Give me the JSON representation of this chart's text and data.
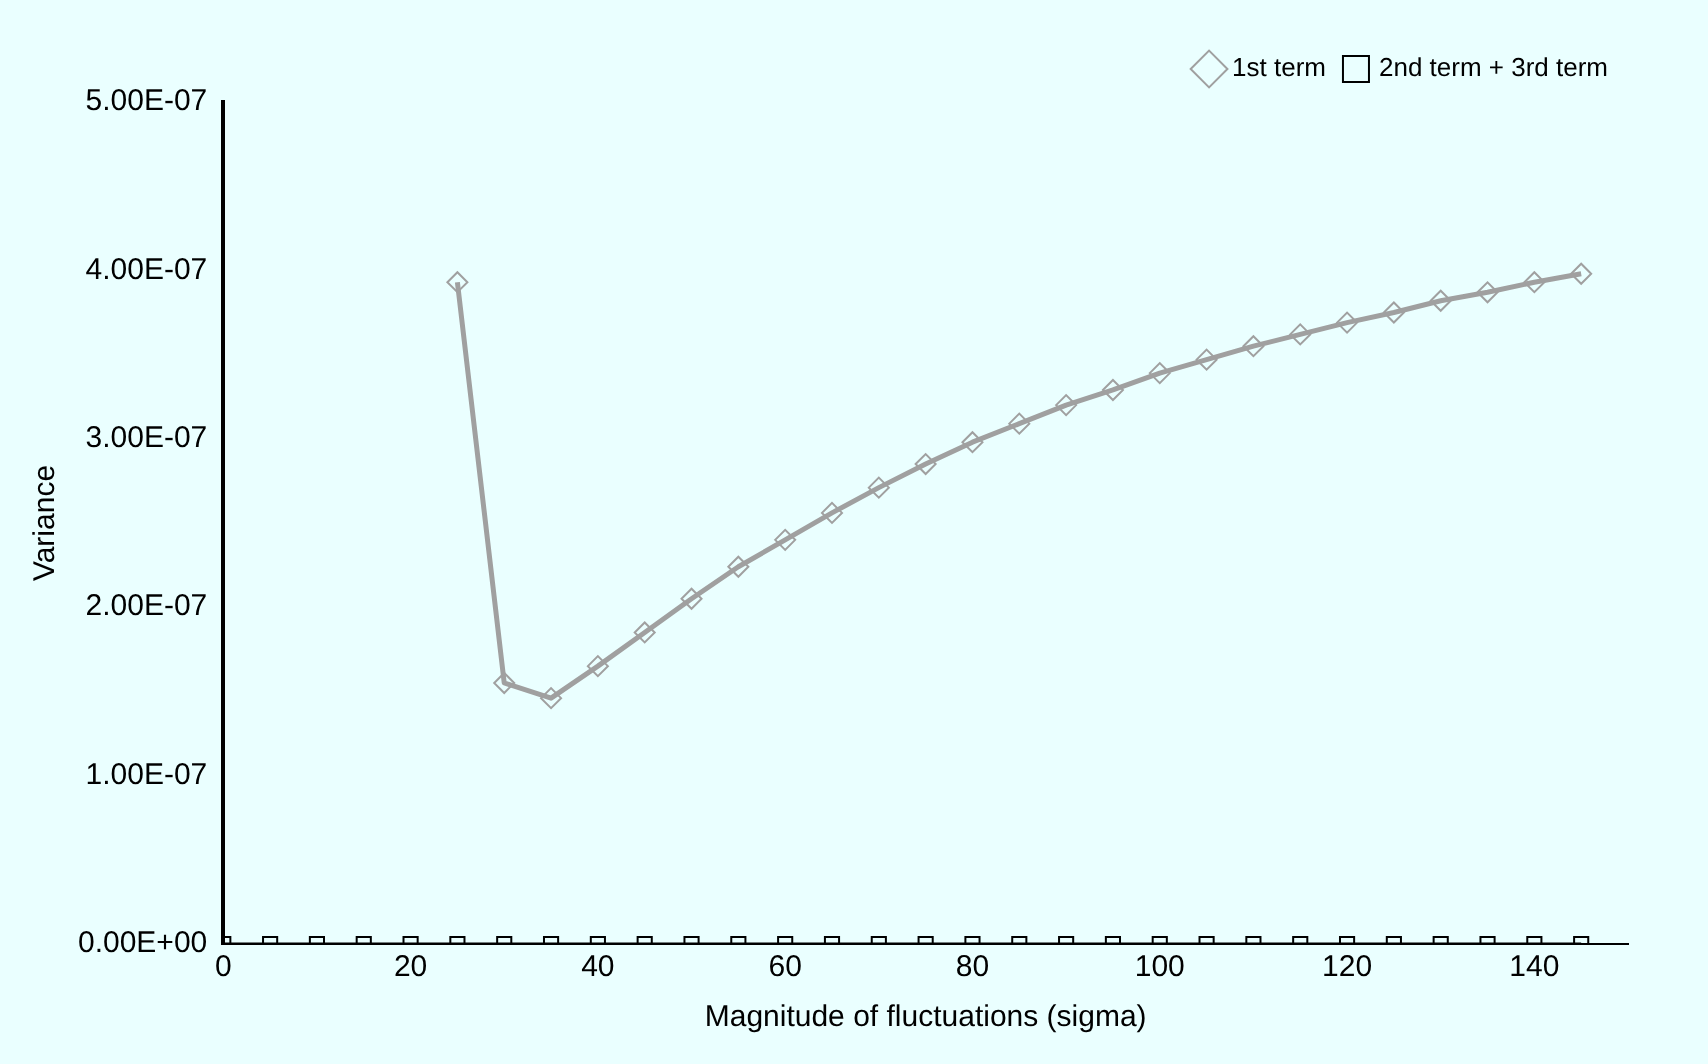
{
  "chart_data": {
    "type": "line",
    "xlabel": "Magnitude of fluctuations (sigma)",
    "ylabel": "Variance",
    "x": [
      0,
      5,
      10,
      15,
      20,
      25,
      30,
      35,
      40,
      45,
      50,
      55,
      60,
      65,
      70,
      75,
      80,
      85,
      90,
      95,
      100,
      105,
      110,
      115,
      120,
      125,
      130,
      135,
      140,
      145
    ],
    "series": [
      {
        "name": "1st term",
        "color": "#a0a0a0",
        "marker": "diamond",
        "values": [
          null,
          null,
          null,
          null,
          null,
          3.93e-07,
          1.55e-07,
          1.46e-07,
          1.65e-07,
          1.85e-07,
          2.05e-07,
          2.24e-07,
          2.4e-07,
          2.56e-07,
          2.71e-07,
          2.85e-07,
          2.98e-07,
          3.09e-07,
          3.2e-07,
          3.29e-07,
          3.39e-07,
          3.47e-07,
          3.55e-07,
          3.62e-07,
          3.69e-07,
          3.75e-07,
          3.82e-07,
          3.87e-07,
          3.93e-07,
          3.98e-07
        ]
      },
      {
        "name": "2nd term + 3rd term",
        "color": "#000000",
        "marker": "square",
        "values": [
          0,
          0,
          0,
          0,
          0,
          0,
          0,
          0,
          0,
          0,
          0,
          0,
          0,
          0,
          0,
          0,
          0,
          0,
          0,
          0,
          0,
          0,
          0,
          0,
          0,
          0,
          0,
          0,
          0,
          0
        ]
      }
    ],
    "xlim": [
      0,
      150
    ],
    "xticks": [
      0,
      20,
      40,
      60,
      80,
      100,
      120,
      140
    ],
    "ylim": [
      0,
      5e-07
    ],
    "yticks": [
      {
        "value": 0,
        "label": "0.00E+00"
      },
      {
        "value": 1e-07,
        "label": "1.00E-07"
      },
      {
        "value": 2e-07,
        "label": "2.00E-07"
      },
      {
        "value": 3e-07,
        "label": "3.00E-07"
      },
      {
        "value": 4e-07,
        "label": "4.00E-07"
      },
      {
        "value": 5e-07,
        "label": "5.00E-07"
      }
    ],
    "grid": false,
    "legend": "top right",
    "line_style": "solid"
  }
}
